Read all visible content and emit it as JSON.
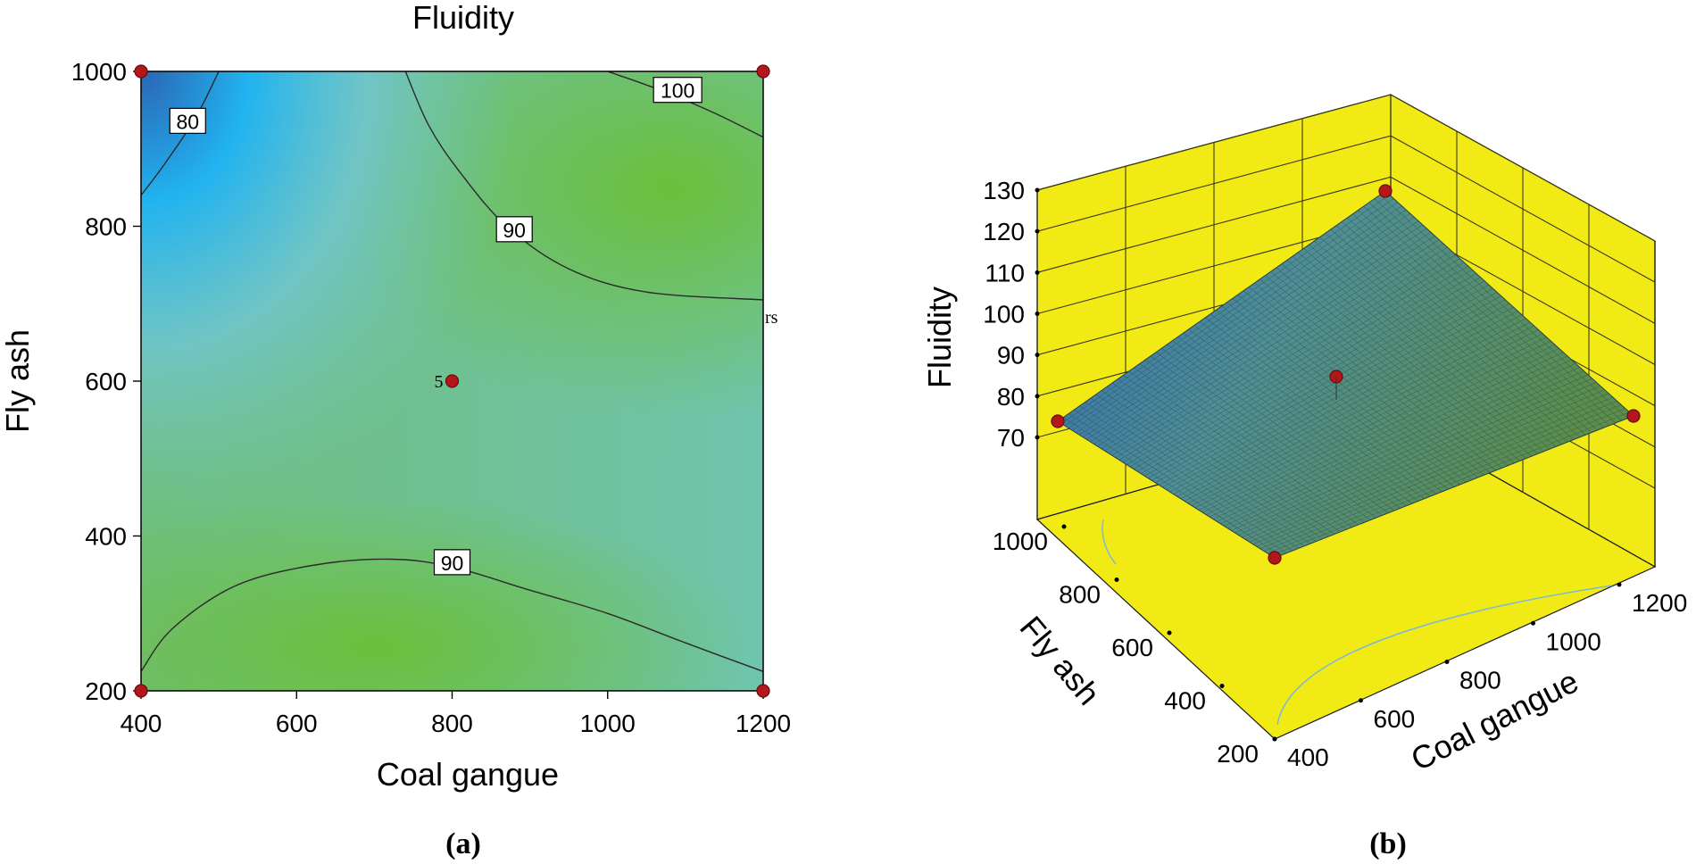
{
  "chart_data": [
    {
      "type": "contour",
      "panel_label": "(a)",
      "title": "Fluidity",
      "xlabel": "Coal gangue",
      "ylabel": "Fly ash",
      "xlim": [
        400,
        1200
      ],
      "ylim": [
        200,
        1000
      ],
      "xticks": [
        "400",
        "600",
        "800",
        "1000",
        "1200"
      ],
      "yticks": [
        "200",
        "400",
        "600",
        "800",
        "1000"
      ],
      "grid": false,
      "contours": [
        {
          "label": "80",
          "level": 80,
          "points": [
            [
              400,
              840
            ],
            [
              430,
              880
            ],
            [
              470,
              940
            ],
            [
              500,
              1000
            ]
          ]
        },
        {
          "label": "90",
          "level": 90,
          "points": [
            [
              740,
              1000
            ],
            [
              770,
              930
            ],
            [
              810,
              870
            ],
            [
              870,
              800
            ],
            [
              950,
              745
            ],
            [
              1050,
              715
            ],
            [
              1200,
              705
            ]
          ]
        },
        {
          "label": "100",
          "level": 100,
          "points": [
            [
              1000,
              1000
            ],
            [
              1070,
              975
            ],
            [
              1140,
              945
            ],
            [
              1200,
              915
            ]
          ]
        },
        {
          "label": "90",
          "level": 90,
          "points": [
            [
              400,
              225
            ],
            [
              440,
              280
            ],
            [
              520,
              335
            ],
            [
              620,
              362
            ],
            [
              720,
              370
            ],
            [
              800,
              360
            ],
            [
              900,
              330
            ],
            [
              1000,
              300
            ],
            [
              1100,
              262
            ],
            [
              1200,
              225
            ]
          ]
        }
      ],
      "design_points": [
        {
          "x": 400,
          "y": 1000
        },
        {
          "x": 1200,
          "y": 1000
        },
        {
          "x": 400,
          "y": 200
        },
        {
          "x": 1200,
          "y": 200
        },
        {
          "x": 800,
          "y": 600,
          "label": "5"
        }
      ],
      "annotation": "rs",
      "colors": {
        "low": "#2aa4e8",
        "mid": "#6dbf8a",
        "high": "#7cc04a"
      }
    },
    {
      "type": "surface",
      "panel_label": "(b)",
      "xlabel": "Coal gangue",
      "ylabel": "Fly ash",
      "zlabel": "Fluidity",
      "xlim": [
        400,
        1200
      ],
      "ylim": [
        200,
        1000
      ],
      "zlim": [
        70,
        130
      ],
      "xticks": [
        "400",
        "600",
        "800",
        "1000",
        "1200"
      ],
      "yticks": [
        "200",
        "400",
        "600",
        "800",
        "1000"
      ],
      "zticks": [
        "70",
        "80",
        "90",
        "100",
        "110",
        "120",
        "130"
      ],
      "corner_values": [
        {
          "x": 400,
          "y": 200,
          "z": 88
        },
        {
          "x": 1200,
          "y": 200,
          "z": 88
        },
        {
          "x": 400,
          "y": 1000,
          "z": 74
        },
        {
          "x": 1200,
          "y": 1000,
          "z": 105
        },
        {
          "x": 800,
          "y": 600,
          "z": 88
        }
      ],
      "colors": {
        "box": "#f2ea15",
        "surface_low": "#2f6fb0",
        "surface_high": "#5a8f4c"
      }
    }
  ]
}
